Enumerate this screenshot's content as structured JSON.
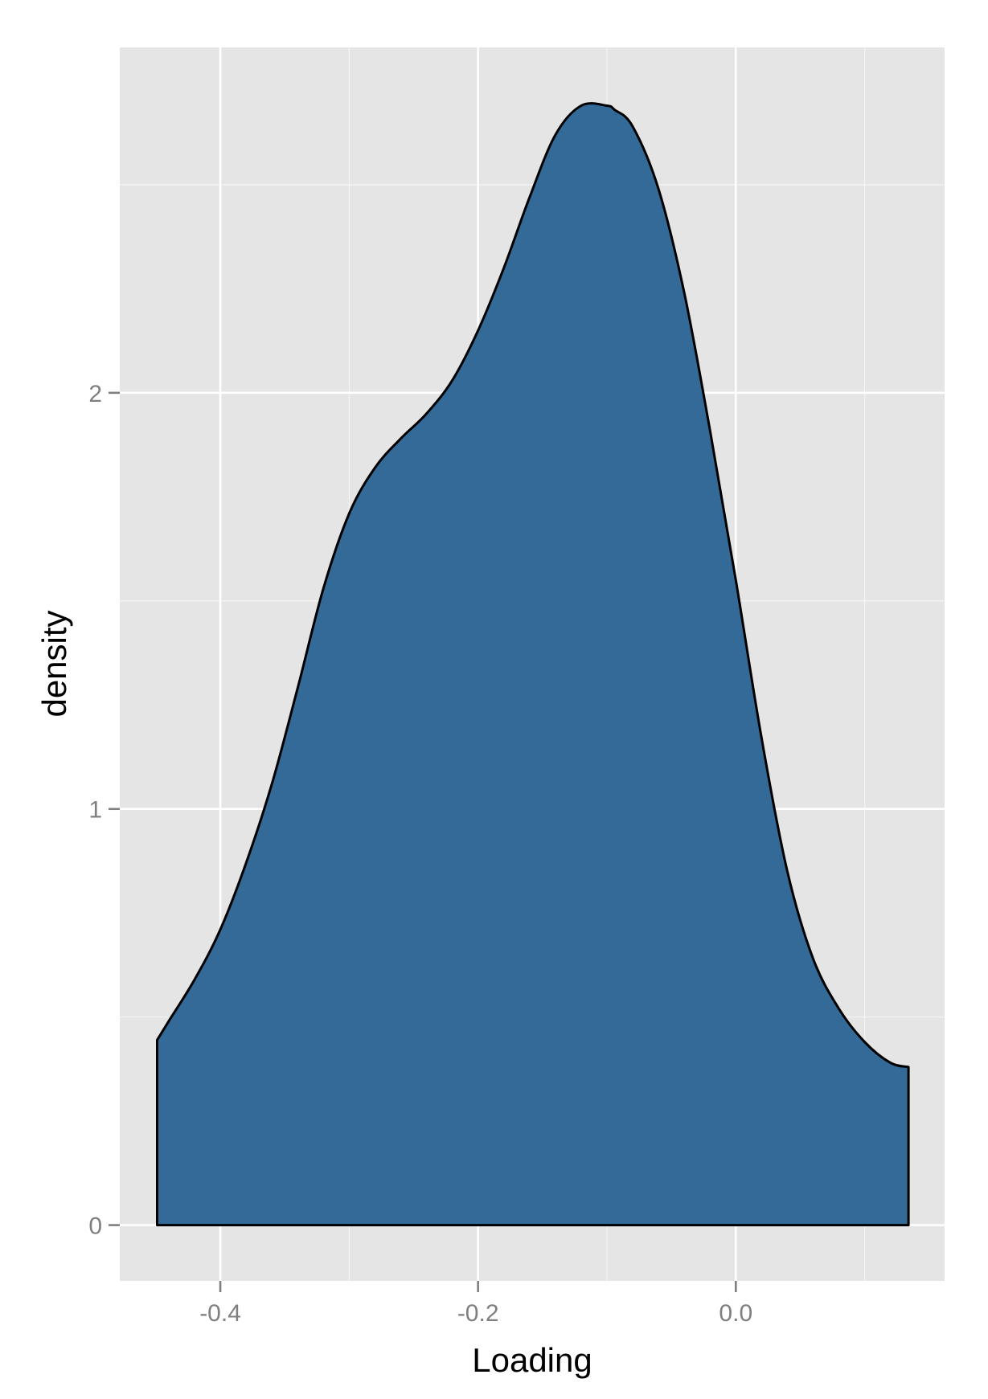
{
  "chart_data": {
    "type": "area",
    "title": "",
    "xlabel": "Loading",
    "ylabel": "density",
    "xlim": [
      -0.478,
      0.162
    ],
    "ylim": [
      -0.134,
      2.83
    ],
    "x_ticks": [
      {
        "value": -0.4,
        "label": "-0.4"
      },
      {
        "value": -0.2,
        "label": "-0.2"
      },
      {
        "value": 0.0,
        "label": "0.0"
      }
    ],
    "x_minor_ticks": [
      -0.3,
      -0.1,
      0.1
    ],
    "y_ticks": [
      {
        "value": 0,
        "label": "0"
      },
      {
        "value": 1,
        "label": "1"
      },
      {
        "value": 2,
        "label": "2"
      }
    ],
    "y_minor_ticks": [
      0.5,
      1.5,
      2.5
    ],
    "grid": true,
    "colors": {
      "panel_background": "#e5e5e5",
      "grid": "#ffffff",
      "fill": "#336a98",
      "outline": "#000000"
    },
    "series": [
      {
        "x": [
          -0.449,
          -0.44,
          -0.42,
          -0.4,
          -0.38,
          -0.36,
          -0.34,
          -0.32,
          -0.3,
          -0.28,
          -0.26,
          -0.24,
          -0.22,
          -0.2,
          -0.18,
          -0.16,
          -0.14,
          -0.12,
          -0.1,
          -0.094,
          -0.08,
          -0.06,
          -0.04,
          -0.02,
          0.0,
          0.02,
          0.04,
          0.06,
          0.08,
          0.1,
          0.12,
          0.134
        ],
        "y": [
          0.445,
          0.49,
          0.59,
          0.71,
          0.87,
          1.06,
          1.29,
          1.53,
          1.71,
          1.82,
          1.89,
          1.95,
          2.03,
          2.15,
          2.3,
          2.47,
          2.62,
          2.69,
          2.69,
          2.68,
          2.64,
          2.49,
          2.24,
          1.91,
          1.55,
          1.17,
          0.85,
          0.64,
          0.52,
          0.44,
          0.39,
          0.38
        ]
      }
    ]
  }
}
